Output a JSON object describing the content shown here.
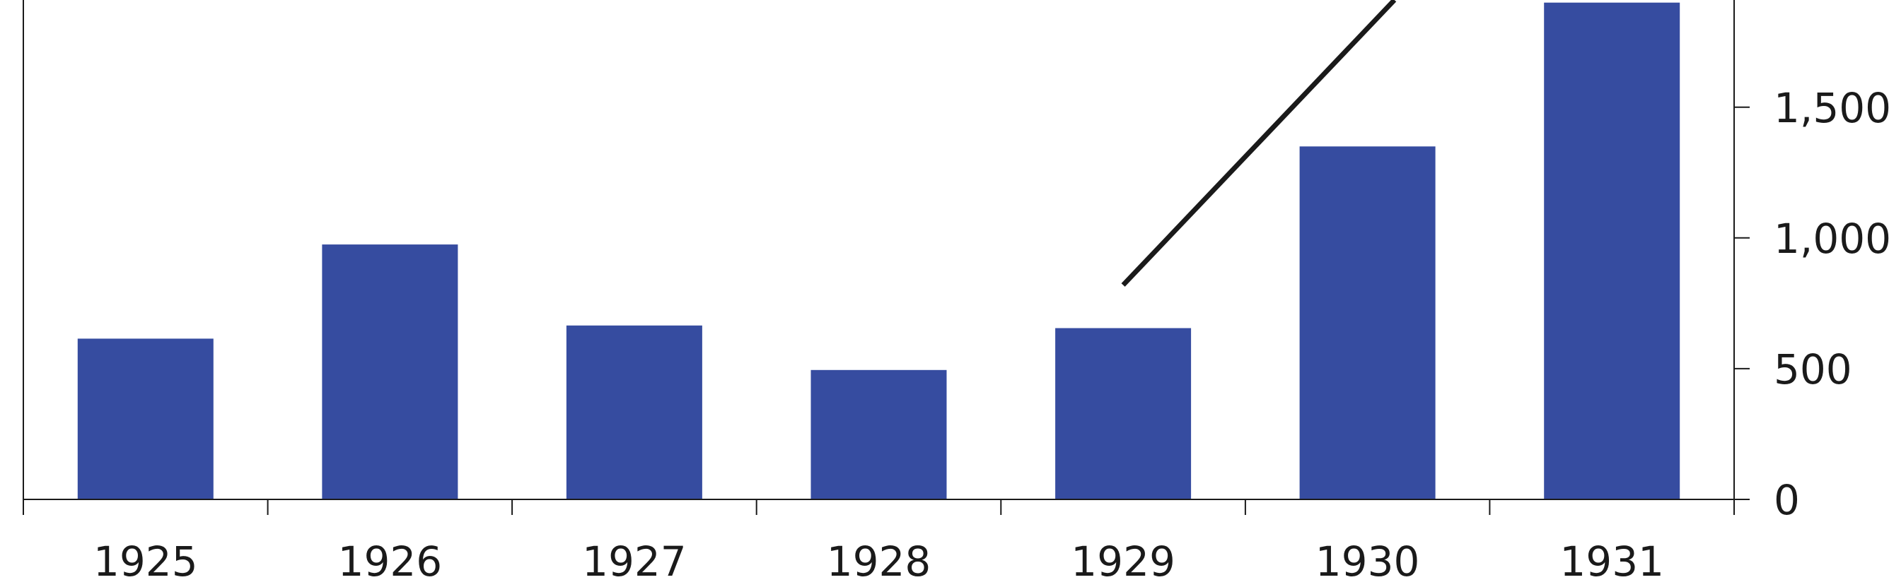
{
  "chart_data": {
    "type": "bar",
    "title": "",
    "xlabel": "",
    "ylabel": "",
    "categories": [
      "1925",
      "1926",
      "1927",
      "1928",
      "1929",
      "1930",
      "1931"
    ],
    "series": [
      {
        "type": "bar",
        "color": "#364ca0",
        "values": [
          615,
          975,
          665,
          495,
          655,
          1350,
          1900
        ]
      },
      {
        "type": "line",
        "color": "#1a1a1a",
        "x": [
          1929,
          1930.11
        ],
        "values": [
          820,
          1910
        ]
      }
    ],
    "y_axis": {
      "position": "right",
      "ticks": [
        0,
        500,
        1000,
        1500
      ],
      "tick_labels": [
        "0",
        "500",
        "1,000",
        "1,500"
      ],
      "ylim": [
        0,
        1910
      ]
    },
    "grid": false,
    "legend": "none"
  }
}
